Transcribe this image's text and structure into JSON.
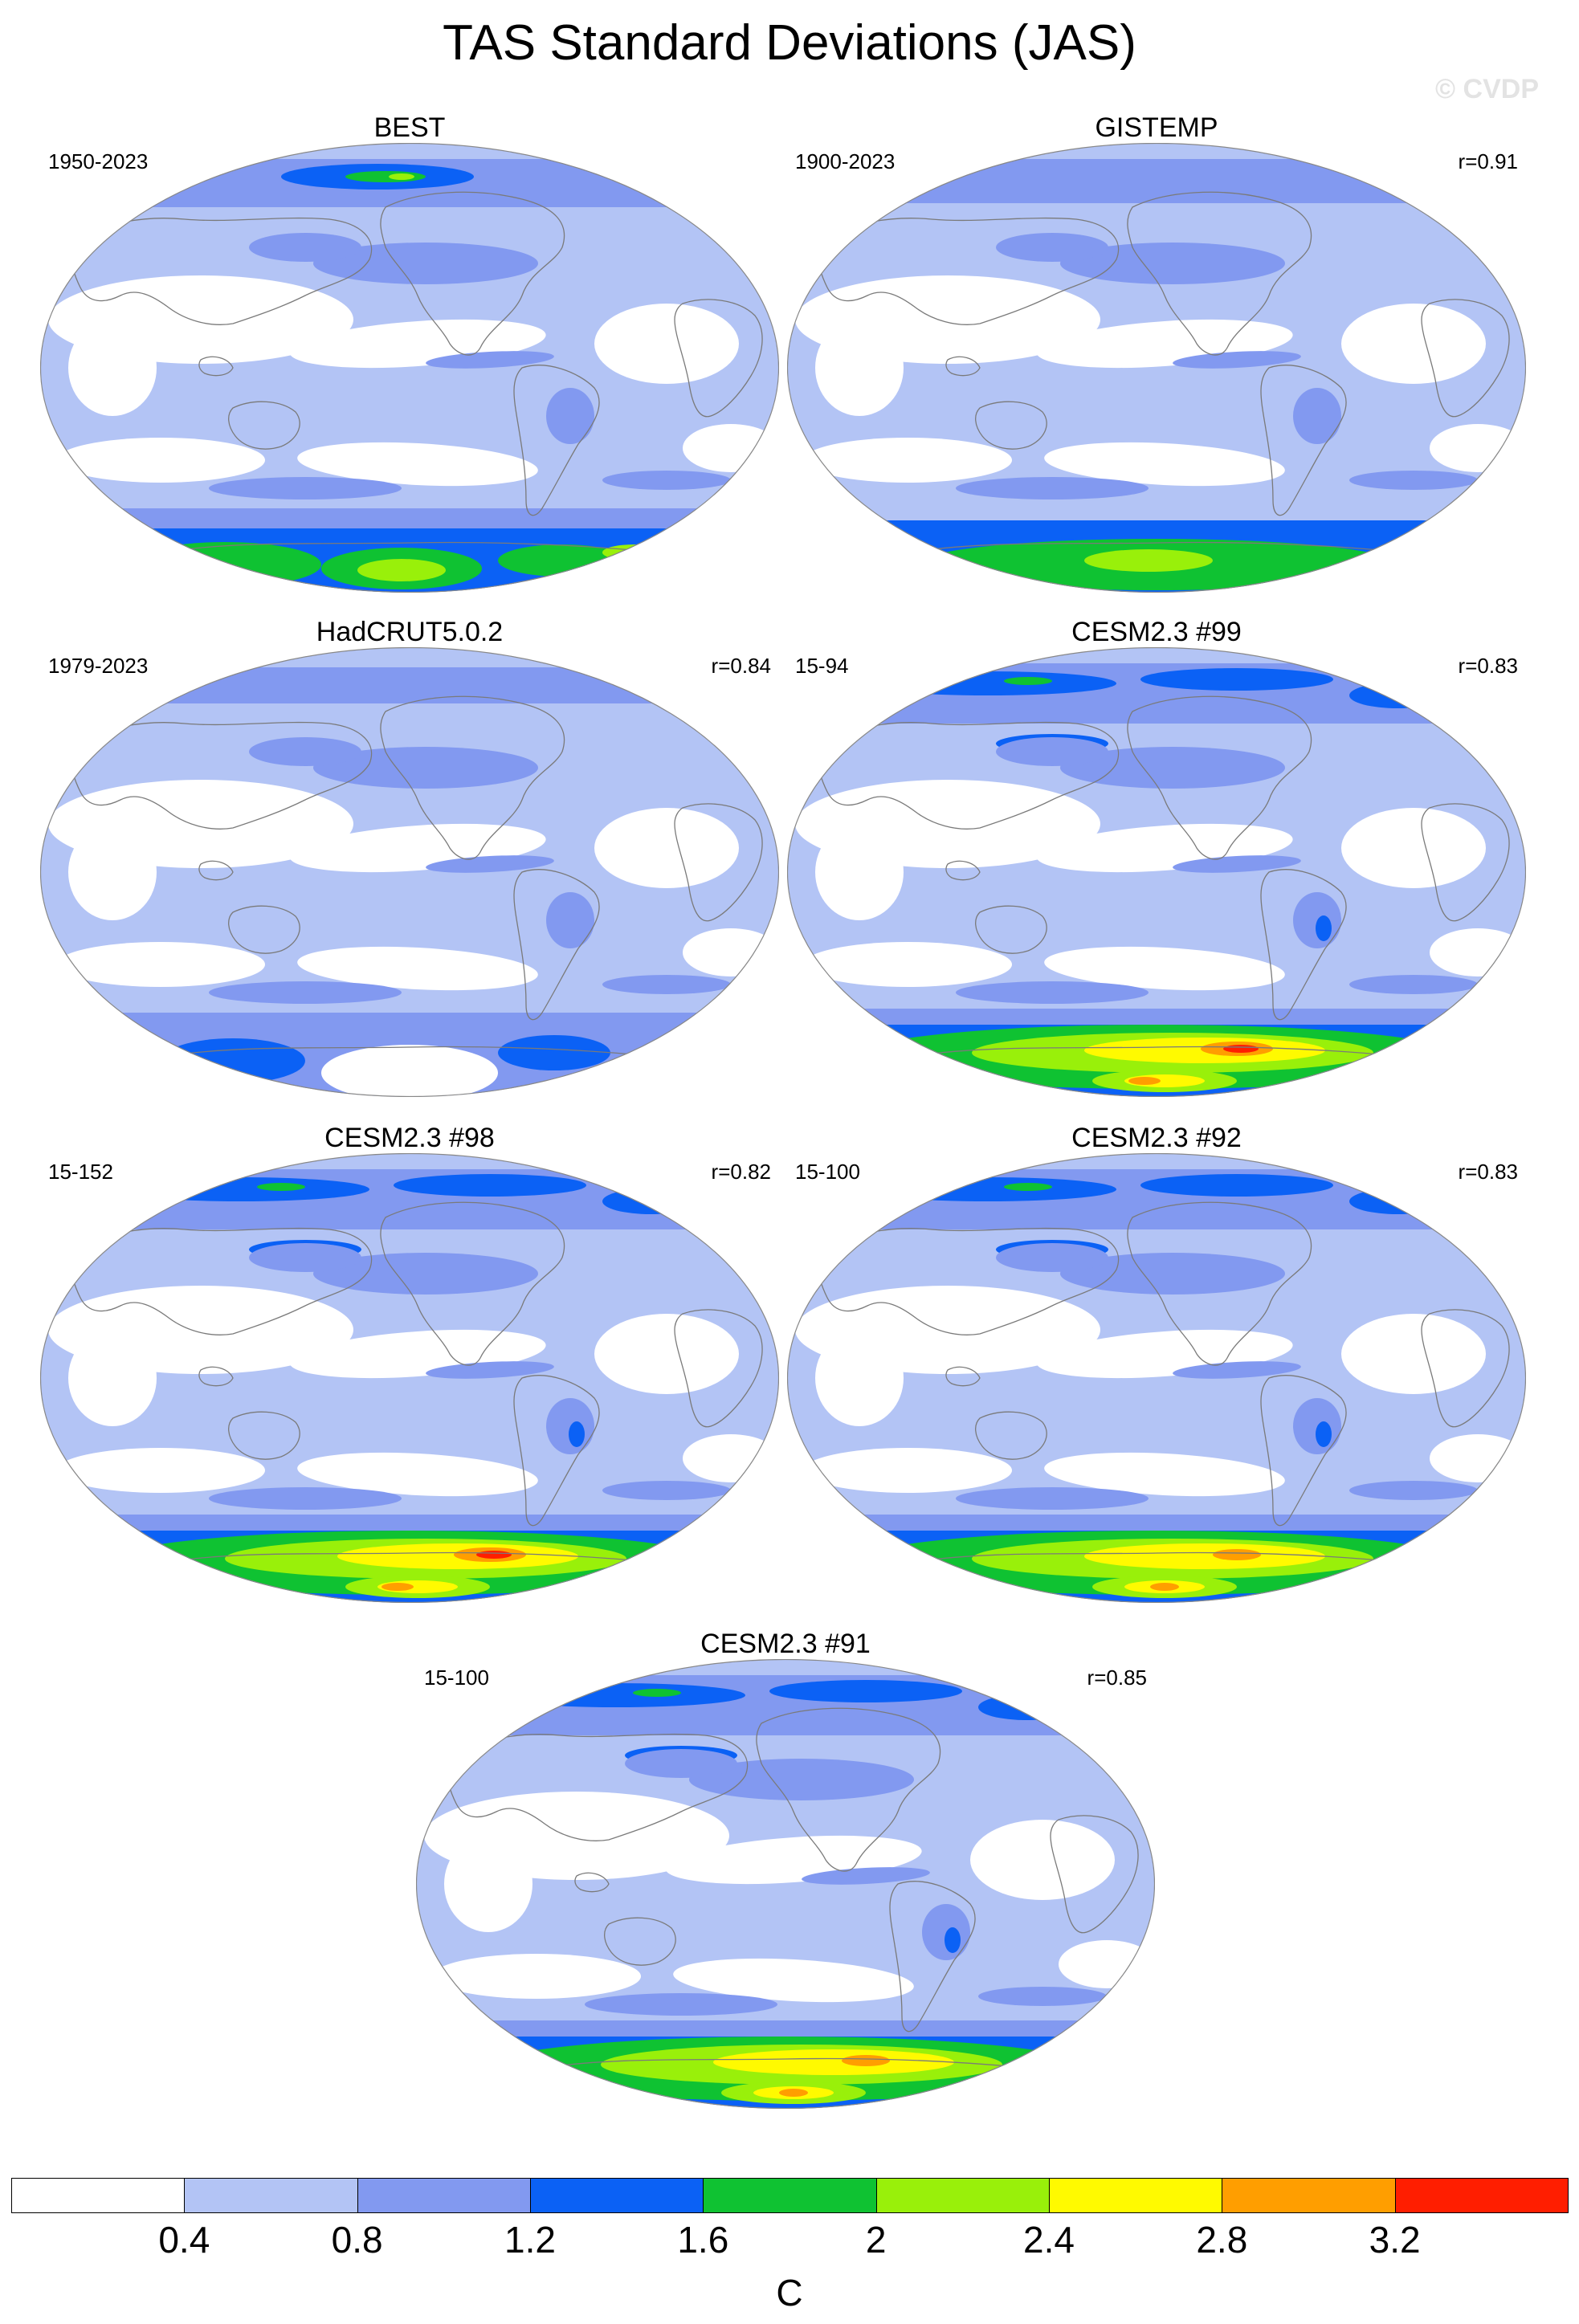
{
  "title": "TAS Standard Deviations (JAS)",
  "watermark": "© CVDP",
  "panels": [
    {
      "title": "BEST",
      "period": "1950-2023",
      "r": ""
    },
    {
      "title": "GISTEMP",
      "period": "1900-2023",
      "r": "r=0.91"
    },
    {
      "title": "HadCRUT5.0.2",
      "period": "1979-2023",
      "r": "r=0.84"
    },
    {
      "title": "CESM2.3 #99",
      "period": "15-94",
      "r": "r=0.83"
    },
    {
      "title": "CESM2.3 #98",
      "period": "15-152",
      "r": "r=0.82"
    },
    {
      "title": "CESM2.3 #92",
      "period": "15-100",
      "r": "r=0.83"
    },
    {
      "title": "CESM2.3 #91",
      "period": "15-100",
      "r": "r=0.85"
    }
  ],
  "colorbar": {
    "unit": "C",
    "labels": [
      "0.4",
      "0.8",
      "1.2",
      "1.6",
      "2",
      "2.4",
      "2.8",
      "3.2"
    ],
    "colors": [
      "#ffffff",
      "#b3c4f5",
      "#8299f0",
      "#0b61f5",
      "#0fc232",
      "#99f00a",
      "#fffa00",
      "#ff9e00",
      "#ff1e00"
    ]
  },
  "map_colors": {
    "ocean_light": "#b3c4f5",
    "medium": "#8299f0",
    "blue": "#0b61f5",
    "green": "#0fc232",
    "lime": "#99f00a",
    "yellow": "#fffa00",
    "orange": "#ff9e00",
    "red": "#ff1e00",
    "coast": "#7a7a7a"
  }
}
